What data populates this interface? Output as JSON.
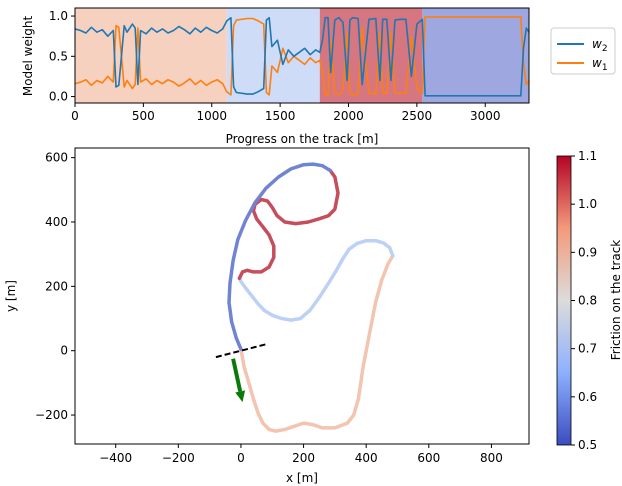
{
  "weights_chart": {
    "type": "line",
    "xlabel": "Progress on the track [m]",
    "ylabel": "Model weight",
    "xlim": [
      0,
      3320
    ],
    "ylim": [
      -0.08,
      1.1
    ],
    "xticks": [
      "0",
      "500",
      "1000",
      "1500",
      "2000",
      "2500",
      "3000"
    ],
    "xtick_values": [
      0,
      500,
      1000,
      1500,
      2000,
      2500,
      3000
    ],
    "yticks": [
      "0.0",
      "0.5",
      "1.0"
    ],
    "ytick_values": [
      0,
      0.5,
      1.0
    ],
    "legend_position": "outside-right",
    "bands": [
      {
        "x0": 0,
        "x1": 1110,
        "friction": 0.85,
        "color": "#f6d1c0"
      },
      {
        "x0": 1110,
        "x1": 1790,
        "friction": 0.72,
        "color": "#cfdcf7"
      },
      {
        "x0": 1790,
        "x1": 2540,
        "friction": 0.98,
        "color": "#d57680"
      },
      {
        "x0": 2540,
        "x1": 3320,
        "friction": 0.58,
        "color": "#9ea7e0"
      }
    ],
    "series": [
      {
        "name": "w2",
        "label_base": "w",
        "label_sub": "2",
        "color": "#1f77b4",
        "x": [
          0,
          40,
          80,
          120,
          160,
          200,
          240,
          280,
          300,
          320,
          360,
          380,
          420,
          440,
          460,
          480,
          520,
          560,
          600,
          640,
          680,
          720,
          760,
          800,
          840,
          880,
          920,
          960,
          1000,
          1040,
          1080,
          1110,
          1140,
          1160,
          1180,
          1260,
          1300,
          1340,
          1380,
          1400,
          1420,
          1440,
          1480,
          1520,
          1560,
          1600,
          1640,
          1680,
          1720,
          1760,
          1790,
          1810,
          1830,
          1850,
          1870,
          1900,
          1930,
          1960,
          1990,
          2010,
          2030,
          2070,
          2100,
          2150,
          2200,
          2230,
          2250,
          2280,
          2310,
          2340,
          2380,
          2420,
          2460,
          2500,
          2540,
          2560,
          3260,
          3280,
          3300,
          3320
        ],
        "values": [
          0.84,
          0.82,
          0.79,
          0.86,
          0.8,
          0.83,
          0.75,
          0.82,
          0.12,
          0.14,
          0.88,
          0.8,
          0.9,
          0.85,
          0.15,
          0.82,
          0.78,
          0.85,
          0.8,
          0.84,
          0.79,
          0.82,
          0.87,
          0.83,
          0.78,
          0.85,
          0.8,
          0.86,
          0.82,
          0.79,
          0.84,
          0.94,
          0.98,
          0.12,
          0.05,
          0.03,
          0.03,
          0.06,
          0.1,
          0.95,
          0.98,
          0.62,
          0.7,
          0.4,
          0.58,
          0.5,
          0.55,
          0.6,
          0.52,
          0.58,
          0.55,
          0.7,
          0.98,
          0.98,
          0.3,
          0.95,
          0.98,
          0.92,
          0.2,
          0.95,
          0.98,
          0.97,
          0.15,
          0.96,
          0.97,
          0.2,
          0.96,
          0.96,
          0.2,
          0.95,
          0.96,
          0.96,
          0.25,
          0.9,
          0.96,
          0.01,
          0.01,
          0.6,
          0.85,
          0.8
        ]
      },
      {
        "name": "w1",
        "label_base": "w",
        "label_sub": "1",
        "color": "#ff7f0e",
        "x": [
          0,
          40,
          80,
          120,
          160,
          200,
          240,
          280,
          300,
          320,
          360,
          380,
          420,
          440,
          460,
          480,
          520,
          560,
          600,
          640,
          680,
          720,
          760,
          800,
          840,
          880,
          920,
          960,
          1000,
          1040,
          1080,
          1110,
          1140,
          1160,
          1180,
          1260,
          1300,
          1340,
          1380,
          1400,
          1420,
          1440,
          1480,
          1520,
          1560,
          1600,
          1640,
          1680,
          1720,
          1760,
          1790,
          1810,
          1830,
          1850,
          1870,
          1900,
          1930,
          1960,
          1990,
          2010,
          2030,
          2070,
          2100,
          2150,
          2200,
          2230,
          2250,
          2280,
          2310,
          2340,
          2380,
          2420,
          2460,
          2500,
          2540,
          2560,
          3260,
          3280,
          3300,
          3320
        ],
        "values": [
          0.16,
          0.18,
          0.21,
          0.14,
          0.2,
          0.17,
          0.25,
          0.18,
          0.88,
          0.86,
          0.12,
          0.2,
          0.1,
          0.15,
          0.85,
          0.18,
          0.22,
          0.15,
          0.2,
          0.16,
          0.21,
          0.18,
          0.13,
          0.17,
          0.22,
          0.15,
          0.2,
          0.14,
          0.18,
          0.21,
          0.16,
          0.06,
          0.02,
          0.88,
          0.95,
          0.97,
          0.97,
          0.94,
          0.9,
          0.05,
          0.02,
          0.38,
          0.3,
          0.6,
          0.42,
          0.5,
          0.45,
          0.4,
          0.48,
          0.42,
          0.45,
          0.3,
          0.02,
          0.02,
          0.7,
          0.05,
          0.02,
          0.08,
          0.8,
          0.05,
          0.02,
          0.03,
          0.85,
          0.04,
          0.03,
          0.8,
          0.04,
          0.04,
          0.8,
          0.05,
          0.04,
          0.04,
          0.75,
          0.1,
          0.04,
          0.99,
          0.99,
          0.4,
          0.15,
          0.2
        ]
      }
    ]
  },
  "track_chart": {
    "type": "line",
    "xlabel": "x [m]",
    "ylabel": "y [m]",
    "xlim": [
      -530,
      920
    ],
    "ylim": [
      -290,
      630
    ],
    "xticks": [
      "−400",
      "−200",
      "0",
      "200",
      "400",
      "600",
      "800"
    ],
    "xtick_values": [
      -400,
      -200,
      0,
      200,
      400,
      600,
      800
    ],
    "yticks": [
      "−200",
      "0",
      "200",
      "400",
      "600"
    ],
    "ytick_values": [
      -200,
      0,
      200,
      400,
      600
    ],
    "grid": false,
    "segments": [
      {
        "friction": 0.85,
        "color": "#f3c4b0",
        "x": [
          0,
          10,
          25,
          40,
          55,
          70,
          90,
          110,
          140,
          170,
          200,
          230,
          260,
          300,
          340,
          360,
          375,
          390,
          410,
          430,
          450,
          470,
          485
        ],
        "y": [
          5,
          -50,
          -100,
          -150,
          -195,
          -225,
          -245,
          -250,
          -245,
          -235,
          -225,
          -230,
          -240,
          -240,
          -225,
          -200,
          -150,
          -50,
          50,
          150,
          220,
          270,
          295
        ]
      },
      {
        "friction": 0.72,
        "color": "#bcd1f5",
        "x": [
          485,
          475,
          455,
          430,
          400,
          370,
          345,
          325,
          305,
          280,
          250,
          220,
          190,
          160,
          130,
          100,
          75,
          55,
          35,
          15,
          0,
          -5
        ],
        "y": [
          295,
          320,
          335,
          342,
          342,
          333,
          315,
          285,
          250,
          210,
          165,
          125,
          100,
          95,
          100,
          110,
          125,
          145,
          170,
          195,
          215,
          225
        ]
      },
      {
        "friction": 0.98,
        "color": "#c44e5c",
        "x": [
          -5,
          5,
          20,
          40,
          65,
          90,
          105,
          105,
          90,
          70,
          50,
          40,
          45,
          65,
          85,
          100,
          115,
          140,
          175,
          215,
          250,
          280,
          300,
          310,
          300,
          285
        ],
        "y": [
          225,
          245,
          250,
          245,
          245,
          260,
          290,
          325,
          360,
          385,
          410,
          435,
          455,
          470,
          465,
          445,
          420,
          400,
          395,
          400,
          410,
          420,
          440,
          490,
          540,
          560
        ]
      },
      {
        "friction": 0.58,
        "color": "#7084d2",
        "x": [
          285,
          260,
          230,
          200,
          160,
          120,
          80,
          45,
          15,
          -10,
          -25,
          -35,
          -38,
          -30,
          -15,
          0
        ],
        "y": [
          560,
          575,
          580,
          578,
          565,
          540,
          505,
          460,
          405,
          345,
          280,
          210,
          150,
          90,
          40,
          5
        ]
      }
    ],
    "start_line": {
      "x": [
        -80,
        80
      ],
      "y": [
        -20,
        20
      ]
    },
    "direction_arrow": {
      "x": [
        -25,
        5
      ],
      "y": [
        -25,
        -160
      ],
      "color": "#0a7a0a"
    },
    "colorbar": {
      "label": "Friction on the track",
      "min": 0.5,
      "max": 1.1,
      "ticks": [
        "0.5",
        "0.6",
        "0.7",
        "0.8",
        "0.9",
        "1.0",
        "1.1"
      ],
      "tick_values": [
        0.5,
        0.6,
        0.7,
        0.8,
        0.9,
        1.0,
        1.1
      ],
      "colormap": "coolwarm"
    }
  }
}
